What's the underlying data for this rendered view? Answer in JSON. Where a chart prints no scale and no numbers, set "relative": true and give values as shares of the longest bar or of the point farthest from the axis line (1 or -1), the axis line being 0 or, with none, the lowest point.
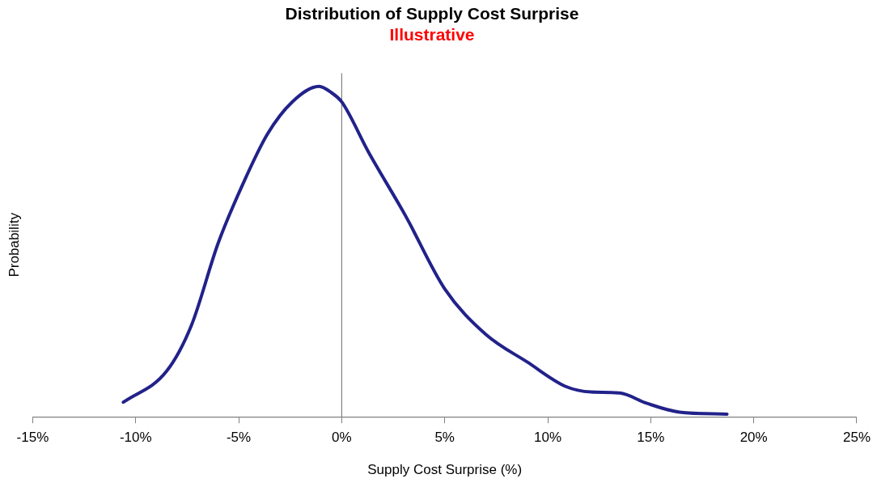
{
  "chart_data": {
    "type": "line",
    "title": "Distribution of Supply Cost Surprise",
    "subtitle": "Illustrative",
    "xlabel": "Supply Cost Surprise (%)",
    "ylabel": "Probability",
    "relative": true,
    "x": [
      -10.6,
      -8.5,
      -7.3,
      -6,
      -4.8,
      -3.6,
      -2.4,
      -1.1,
      -0.5,
      0,
      1.3,
      3.1,
      5,
      7,
      9,
      10.9,
      12.1,
      13.5,
      14.8,
      16.4,
      18.7
    ],
    "series": [
      {
        "color": "#22228a",
        "values": [
          0.044,
          0.138,
          0.276,
          0.525,
          0.704,
          0.856,
          0.953,
          1,
          0.981,
          0.953,
          0.801,
          0.608,
          0.387,
          0.249,
          0.166,
          0.091,
          0.075,
          0.072,
          0.041,
          0.014,
          0.008
        ]
      }
    ],
    "xlim": [
      -15,
      25
    ],
    "xticks": [
      {
        "value": -15,
        "label": "-15%"
      },
      {
        "value": -10,
        "label": "-10%"
      },
      {
        "value": -5,
        "label": "-5%"
      },
      {
        "value": 0,
        "label": "0%"
      },
      {
        "value": 5,
        "label": "5%"
      },
      {
        "value": 10,
        "label": "10%"
      },
      {
        "value": 15,
        "label": "15%"
      },
      {
        "value": 20,
        "label": "20%"
      },
      {
        "value": 25,
        "label": "25%"
      }
    ],
    "ref_lines": [
      {
        "axis": "x",
        "value": 0,
        "color": "#808080"
      }
    ],
    "grid": false,
    "legend": false,
    "marker": "none",
    "line_style": "solid"
  }
}
